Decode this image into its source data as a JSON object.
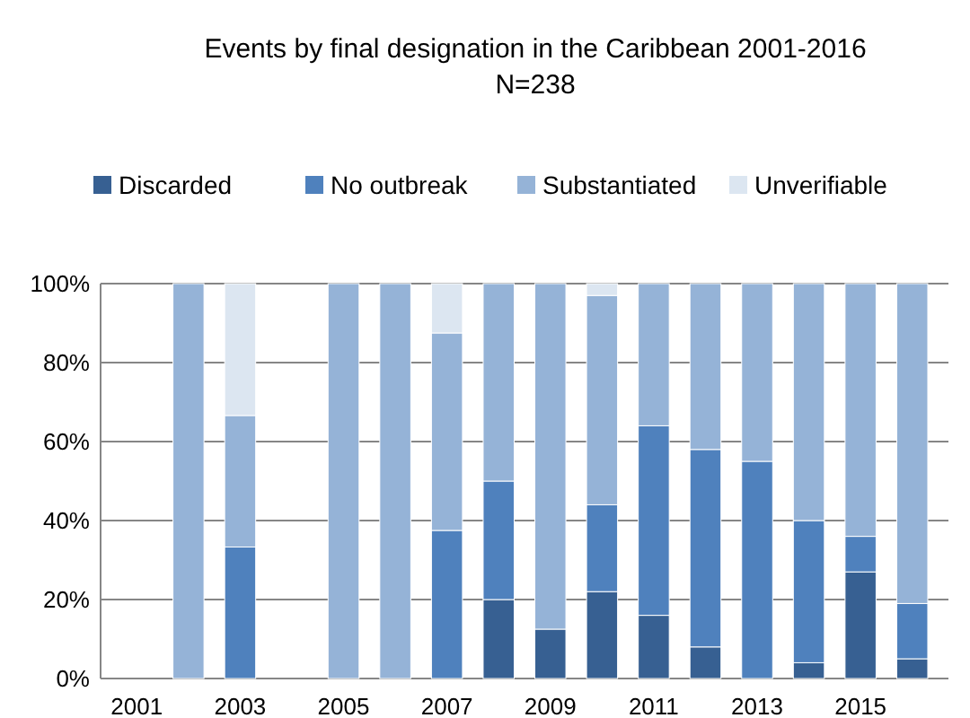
{
  "chart_data": {
    "type": "bar",
    "title": "Events by final designation in the Caribbean 2001-2016",
    "subtitle": "N=238",
    "stacked": true,
    "legend": "top",
    "grid": "y",
    "categories": [
      "2001",
      null,
      "2003",
      null,
      "2005",
      null,
      "2007",
      null,
      "2009",
      null,
      "2011",
      null,
      "2013",
      null,
      "2015",
      null
    ],
    "ylim": [
      0,
      100
    ],
    "yticks": [
      {
        "value": 0,
        "label": "0%"
      },
      {
        "value": 20,
        "label": "20%"
      },
      {
        "value": 40,
        "label": "40%"
      },
      {
        "value": 60,
        "label": "60%"
      },
      {
        "value": 80,
        "label": "80%"
      },
      {
        "value": 100,
        "label": "100%"
      }
    ],
    "series": [
      {
        "name": "Discarded",
        "color": "#376092",
        "values": [
          null,
          null,
          null,
          null,
          null,
          null,
          null,
          20,
          12.5,
          22,
          16,
          8,
          null,
          4,
          27,
          5
        ]
      },
      {
        "name": "No outbreak",
        "color": "#4f81bd",
        "values": [
          null,
          null,
          33.3,
          null,
          null,
          null,
          37.5,
          30,
          null,
          22,
          48,
          50,
          55,
          36,
          9,
          14
        ]
      },
      {
        "name": "Substantiated",
        "color": "#95b3d7",
        "values": [
          null,
          100,
          33.3,
          null,
          100,
          100,
          50,
          50,
          87.5,
          53,
          36,
          42,
          45,
          60,
          64,
          81
        ]
      },
      {
        "name": "Unverifiable",
        "color": "#dce6f1",
        "values": [
          null,
          null,
          33.4,
          null,
          null,
          null,
          12.5,
          null,
          null,
          3,
          null,
          null,
          null,
          null,
          null,
          null
        ]
      }
    ]
  }
}
